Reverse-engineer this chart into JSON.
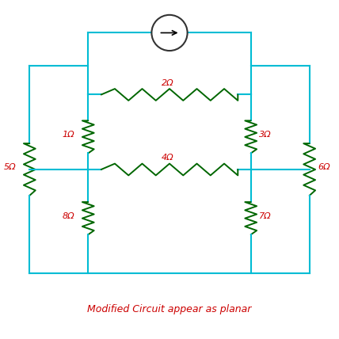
{
  "title": "Modified Circuit appear as planar",
  "title_color": "#cc0000",
  "wire_color": "#00bcd4",
  "resistor_color": "#006600",
  "label_color": "#cc0000",
  "bg_color": "#ffffff",
  "source_circle_color": "#333333",
  "fig_size": [
    4.28,
    4.28
  ],
  "dpi": 100,
  "resistor_labels": {
    "R1": "1Ω",
    "R2": "2Ω",
    "R3": "3Ω",
    "R4": "4Ω",
    "R5": "5Ω",
    "R6": "6Ω",
    "R7": "7Ω",
    "R8": "8Ω"
  },
  "xlim": [
    0,
    10
  ],
  "ylim": [
    0,
    10
  ]
}
